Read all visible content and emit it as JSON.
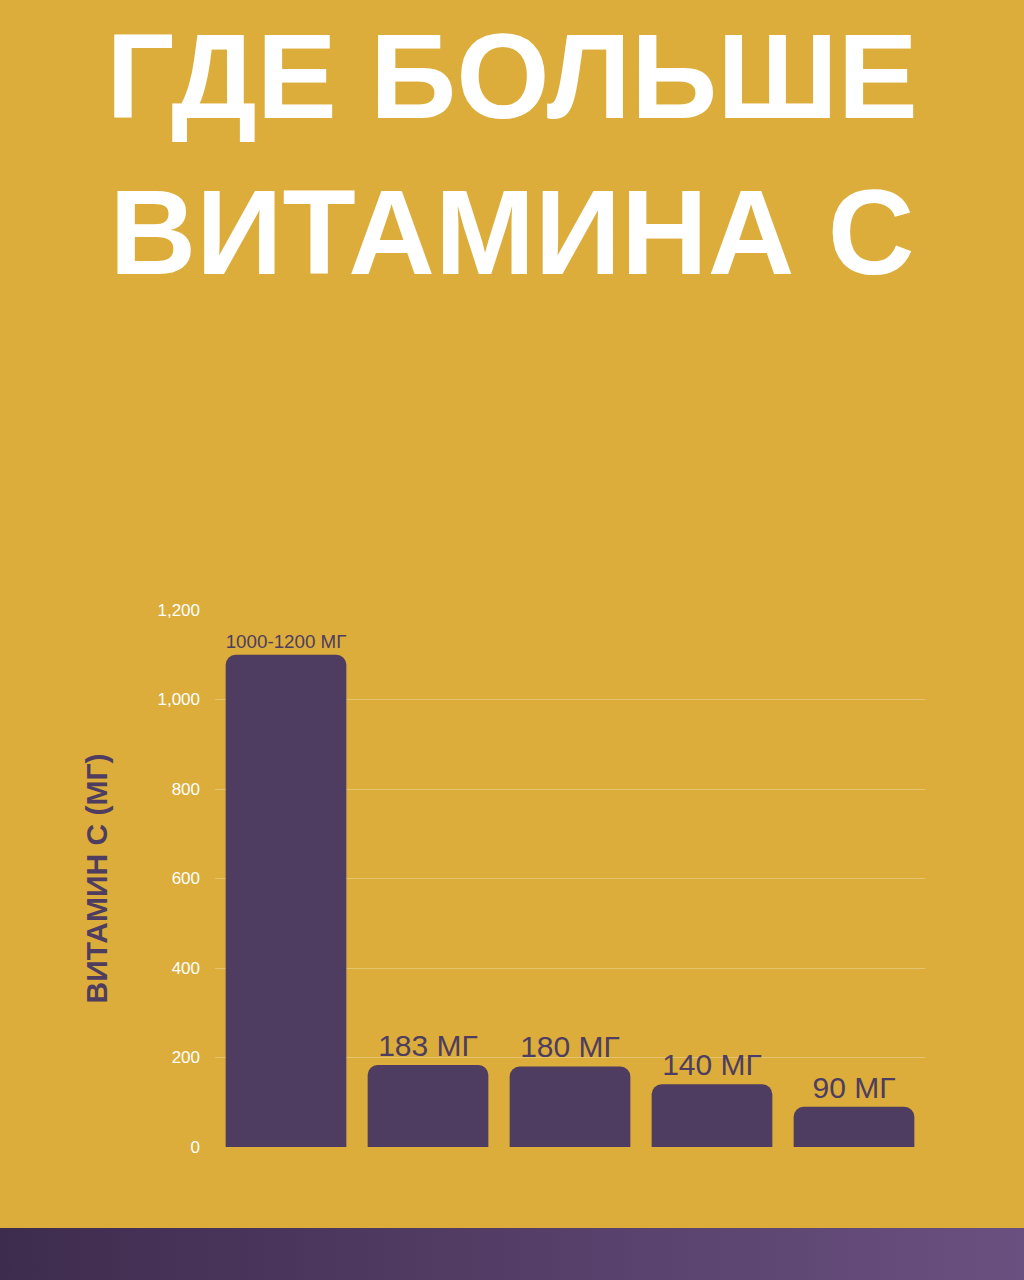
{
  "chart_data": {
    "type": "bar",
    "title": "ГДЕ БОЛЬШЕ ВИТАМИНА С",
    "y_label": "ВИТАМИН С (МГ)",
    "categories": [
      null,
      null,
      null,
      null,
      null
    ],
    "values": [
      1100,
      183,
      180,
      140,
      90
    ],
    "value_labels": [
      "1000-1200 МГ",
      "183 МГ",
      "180 МГ",
      "140 МГ",
      "90 МГ"
    ],
    "color": "#4e3d60",
    "ylim": [
      0,
      1200
    ],
    "yticks": [
      0,
      200,
      400,
      600,
      800,
      {
        "value": 1000,
        "label": "1,000"
      },
      {
        "value": 1200,
        "label": "1,200"
      }
    ],
    "grid": true,
    "data_labels": true,
    "tick_labels": "y"
  }
}
